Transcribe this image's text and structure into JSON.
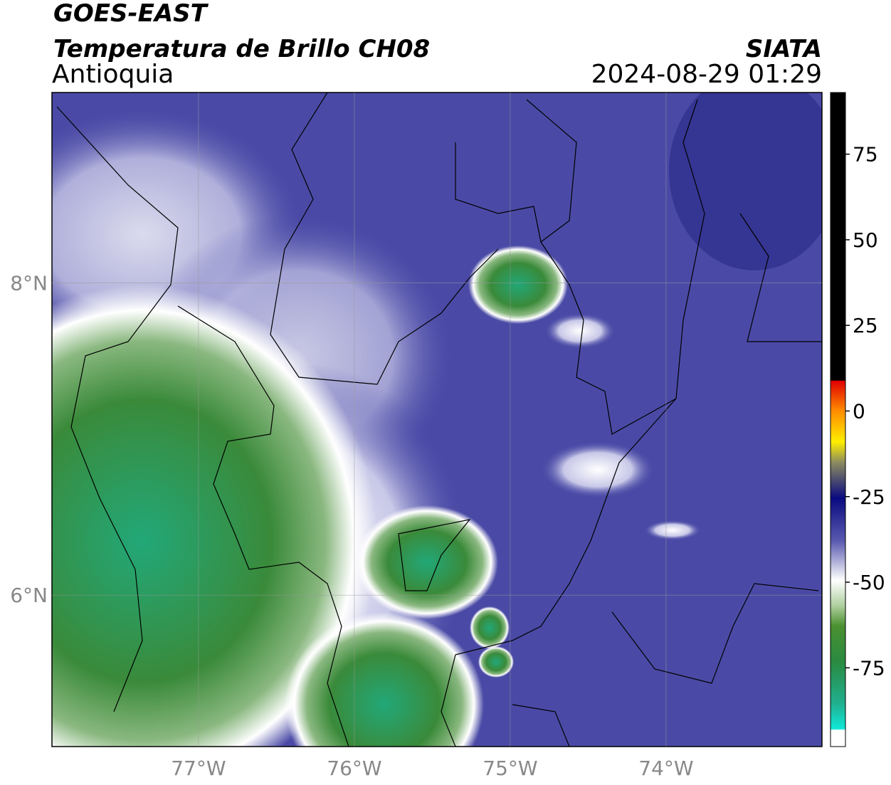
{
  "header": {
    "satellite": "GOES-EAST",
    "product": "Temperatura de Brillo CH08",
    "region": "Antioquia",
    "source": "SIATA",
    "datetime": "2024-08-29 01:29"
  },
  "map": {
    "xlim": [
      -77.94,
      -73.0
    ],
    "ylim": [
      5.03,
      9.22
    ],
    "xticks": [
      {
        "value": -77,
        "label": "77°W"
      },
      {
        "value": -76,
        "label": "76°W"
      },
      {
        "value": -75,
        "label": "75°W"
      },
      {
        "value": -74,
        "label": "74°W"
      }
    ],
    "yticks": [
      {
        "value": 8,
        "label": "8°N"
      },
      {
        "value": 6,
        "label": "6°N"
      }
    ],
    "grid": true
  },
  "colorbar": {
    "lim": [
      -98,
      93
    ],
    "ticks": [
      75,
      50,
      25,
      0,
      -25,
      -50,
      -75
    ]
  }
}
